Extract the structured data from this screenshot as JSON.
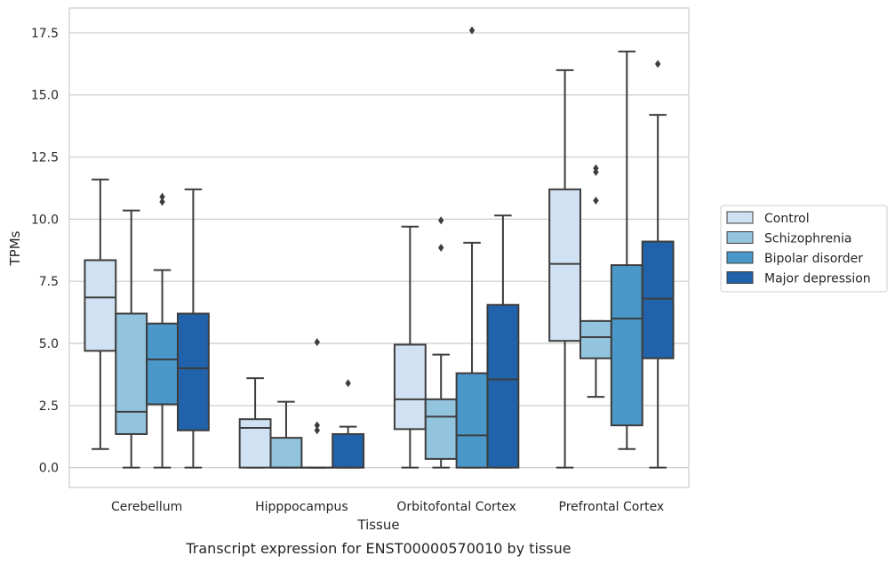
{
  "chart_data": {
    "type": "box",
    "caption": "Transcript expression for ENST00000570010 by tissue",
    "xlabel": "Tissue",
    "ylabel": "TPMs",
    "ylim": [
      -0.8,
      18.5
    ],
    "yticks": [
      "0.0",
      "2.5",
      "5.0",
      "7.5",
      "10.0",
      "12.5",
      "15.0",
      "17.5"
    ],
    "ytick_values": [
      0,
      2.5,
      5,
      7.5,
      10,
      12.5,
      15,
      17.5
    ],
    "grid": "horizontal",
    "legend_position": "right",
    "categories": [
      "Cerebellum",
      "Hipppocampus",
      "Orbitofontal Cortex",
      "Prefrontal Cortex"
    ],
    "series": [
      {
        "name": "Control",
        "color": "#cfe1f2",
        "boxes": [
          {
            "whislo": 0.75,
            "q1": 4.7,
            "med": 6.85,
            "q3": 8.35,
            "whishi": 11.6,
            "fliers": []
          },
          {
            "whislo": 0,
            "q1": 0,
            "med": 1.6,
            "q3": 1.95,
            "whishi": 3.6,
            "fliers": []
          },
          {
            "whislo": 0,
            "q1": 1.55,
            "med": 2.75,
            "q3": 4.95,
            "whishi": 9.7,
            "fliers": []
          },
          {
            "whislo": 0,
            "q1": 5.1,
            "med": 8.2,
            "q3": 11.2,
            "whishi": 16.0,
            "fliers": []
          }
        ]
      },
      {
        "name": "Schizophrenia",
        "color": "#93c4de",
        "boxes": [
          {
            "whislo": 0,
            "q1": 1.35,
            "med": 2.25,
            "q3": 6.2,
            "whishi": 10.35,
            "fliers": []
          },
          {
            "whislo": 0,
            "q1": 0,
            "med": 0,
            "q3": 1.2,
            "whishi": 2.65,
            "fliers": []
          },
          {
            "whislo": 0,
            "q1": 0.35,
            "med": 2.05,
            "q3": 2.75,
            "whishi": 4.55,
            "fliers": [
              8.85,
              9.95
            ]
          },
          {
            "whislo": 2.85,
            "q1": 4.4,
            "med": 5.25,
            "q3": 5.9,
            "whishi": 5.9,
            "fliers": [
              10.75,
              11.9,
              12.05
            ]
          }
        ]
      },
      {
        "name": "Bipolar disorder",
        "color": "#4a98c9",
        "boxes": [
          {
            "whislo": 0,
            "q1": 2.55,
            "med": 4.35,
            "q3": 5.8,
            "whishi": 7.95,
            "fliers": [
              10.7,
              10.9
            ]
          },
          {
            "whislo": 0,
            "q1": 0,
            "med": 0,
            "q3": 0,
            "whishi": 0,
            "fliers": [
              1.5,
              1.7,
              5.05
            ]
          },
          {
            "whislo": 0,
            "q1": 0,
            "med": 1.3,
            "q3": 3.8,
            "whishi": 9.05,
            "fliers": [
              17.6
            ]
          },
          {
            "whislo": 0.75,
            "q1": 1.7,
            "med": 6.0,
            "q3": 8.15,
            "whishi": 16.75,
            "fliers": []
          }
        ]
      },
      {
        "name": "Major depression",
        "color": "#2163aa",
        "boxes": [
          {
            "whislo": 0,
            "q1": 1.5,
            "med": 4.0,
            "q3": 6.2,
            "whishi": 11.2,
            "fliers": []
          },
          {
            "whislo": 0,
            "q1": 0,
            "med": 0,
            "q3": 1.35,
            "whishi": 1.65,
            "fliers": [
              3.4
            ]
          },
          {
            "whislo": 0,
            "q1": 0,
            "med": 3.55,
            "q3": 6.55,
            "whishi": 10.15,
            "fliers": []
          },
          {
            "whislo": 0,
            "q1": 4.4,
            "med": 6.8,
            "q3": 9.1,
            "whishi": 14.2,
            "fliers": [
              16.25
            ]
          }
        ]
      }
    ]
  }
}
